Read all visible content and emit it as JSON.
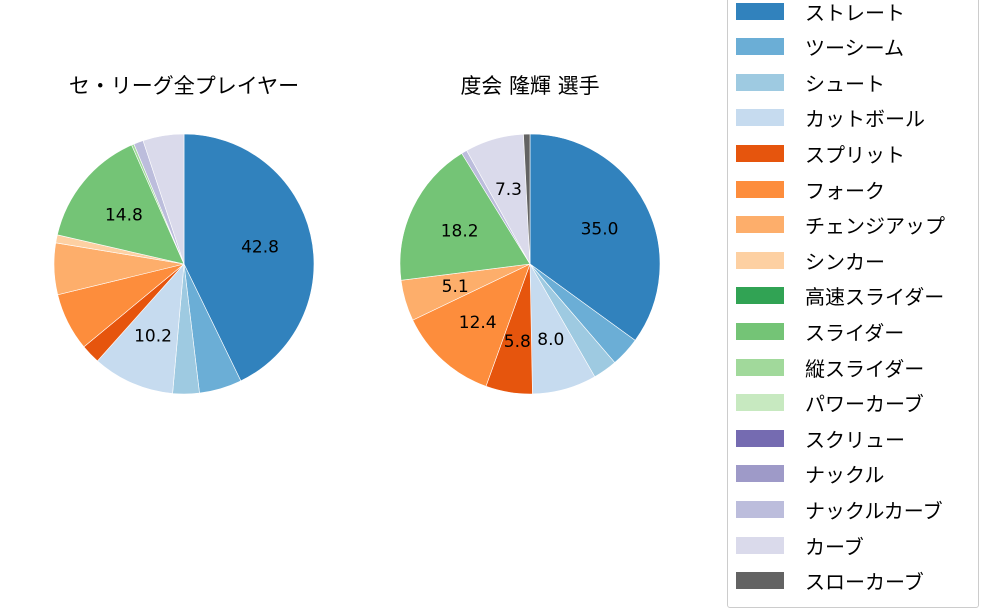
{
  "chart_data": [
    {
      "type": "pie",
      "title": "セ・リーグ全プレイヤー",
      "categories": [
        "ストレート",
        "ツーシーム",
        "シュート",
        "カットボール",
        "スプリット",
        "フォーク",
        "チェンジアップ",
        "シンカー",
        "高速スライダー",
        "スライダー",
        "縦スライダー",
        "パワーカーブ",
        "スクリュー",
        "ナックル",
        "ナックルカーブ",
        "カーブ",
        "スローカーブ"
      ],
      "values": [
        42.8,
        5.3,
        3.3,
        10.2,
        2.4,
        7.2,
        6.4,
        1.0,
        0,
        14.8,
        0.3,
        0,
        0,
        0,
        1.2,
        5.1,
        0
      ],
      "labels_shown": {
        "ストレート": "42.8",
        "カットボール": "10.2",
        "スライダー": "14.8"
      },
      "start_angle": 90,
      "direction": "clockwise"
    },
    {
      "type": "pie",
      "title": "度会 隆輝  選手",
      "categories": [
        "ストレート",
        "ツーシーム",
        "シュート",
        "カットボール",
        "スプリット",
        "フォーク",
        "チェンジアップ",
        "シンカー",
        "高速スライダー",
        "スライダー",
        "縦スライダー",
        "パワーカーブ",
        "スクリュー",
        "ナックル",
        "ナックルカーブ",
        "カーブ",
        "スローカーブ"
      ],
      "values": [
        35.0,
        3.7,
        3.0,
        8.0,
        5.8,
        12.4,
        5.1,
        0,
        0,
        18.2,
        0,
        0,
        0,
        0,
        0.7,
        7.3,
        0.8
      ],
      "labels_shown": {
        "ストレート": "35.0",
        "カットボール": "8.0",
        "スプリット": "5.8",
        "フォーク": "12.4",
        "チェンジアップ": "5.1",
        "スライダー": "18.2",
        "カーブ": "7.3"
      },
      "start_angle": 90,
      "direction": "clockwise"
    }
  ],
  "legend": {
    "items": [
      {
        "label": "ストレート",
        "color": "#3182bd"
      },
      {
        "label": "ツーシーム",
        "color": "#6baed6"
      },
      {
        "label": "シュート",
        "color": "#9ecae1"
      },
      {
        "label": "カットボール",
        "color": "#c6dbef"
      },
      {
        "label": "スプリット",
        "color": "#e6550d"
      },
      {
        "label": "フォーク",
        "color": "#fd8d3c"
      },
      {
        "label": "チェンジアップ",
        "color": "#fdae6b"
      },
      {
        "label": "シンカー",
        "color": "#fdd0a2"
      },
      {
        "label": "高速スライダー",
        "color": "#31a354"
      },
      {
        "label": "スライダー",
        "color": "#74c476"
      },
      {
        "label": "縦スライダー",
        "color": "#a1d99b"
      },
      {
        "label": "パワーカーブ",
        "color": "#c7e9c0"
      },
      {
        "label": "スクリュー",
        "color": "#756bb1"
      },
      {
        "label": "ナックル",
        "color": "#9e9ac8"
      },
      {
        "label": "ナックルカーブ",
        "color": "#bcbddc"
      },
      {
        "label": "カーブ",
        "color": "#dadaeb"
      },
      {
        "label": "スローカーブ",
        "color": "#636363"
      }
    ]
  },
  "titles": {
    "left": "セ・リーグ全プレイヤー",
    "right": "度会 隆輝  選手"
  }
}
